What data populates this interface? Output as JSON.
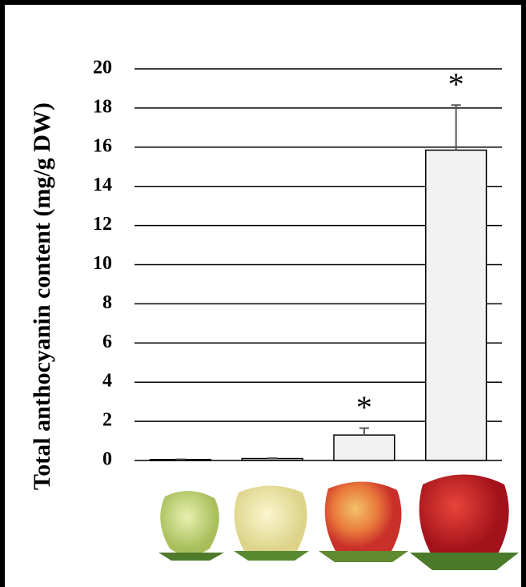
{
  "chart_data": {
    "type": "bar",
    "y_label": "Total anthocyanin content (mg/g DW)",
    "categories": [
      null,
      null,
      null,
      null
    ],
    "values": [
      0.05,
      0.1,
      1.3,
      15.85
    ],
    "errors": [
      0.01,
      0.02,
      0.35,
      2.3
    ],
    "significance": [
      null,
      null,
      "*",
      "*"
    ],
    "color": "#f2f2f2",
    "ylim": [
      0,
      20
    ],
    "yticks": [
      0,
      2,
      4,
      6,
      8,
      10,
      12,
      14,
      16,
      18,
      20
    ],
    "grid": true
  }
}
